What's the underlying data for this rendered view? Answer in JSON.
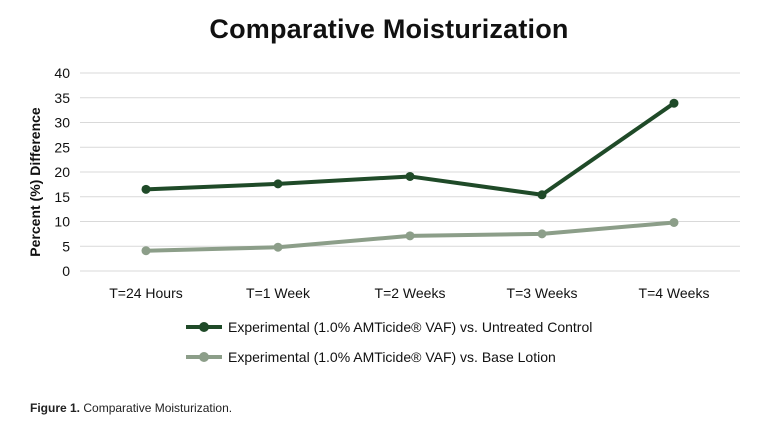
{
  "chart_data": {
    "type": "line",
    "title": "Comparative Moisturization",
    "xlabel": "",
    "ylabel": "Percent (%) Difference",
    "categories": [
      "T=24 Hours",
      "T=1 Week",
      "T=2 Weeks",
      "T=3 Weeks",
      "T=4 Weeks"
    ],
    "ylim": [
      0,
      40
    ],
    "yticks": [
      0,
      5,
      10,
      15,
      20,
      25,
      30,
      35,
      40
    ],
    "grid": true,
    "legend_position": "bottom",
    "series": [
      {
        "name": "Experimental (1.0% AMTicide® VAF) vs. Untreated Control",
        "values": [
          16.5,
          17.6,
          19.1,
          15.4,
          33.9
        ],
        "color": "#1f4a28"
      },
      {
        "name": "Experimental (1.0% AMTicide® VAF) vs. Base Lotion",
        "values": [
          4.1,
          4.8,
          7.1,
          7.5,
          9.8
        ],
        "color": "#8c9e89"
      }
    ]
  },
  "caption": {
    "label": "Figure 1.",
    "text": "Comparative Moisturization."
  }
}
